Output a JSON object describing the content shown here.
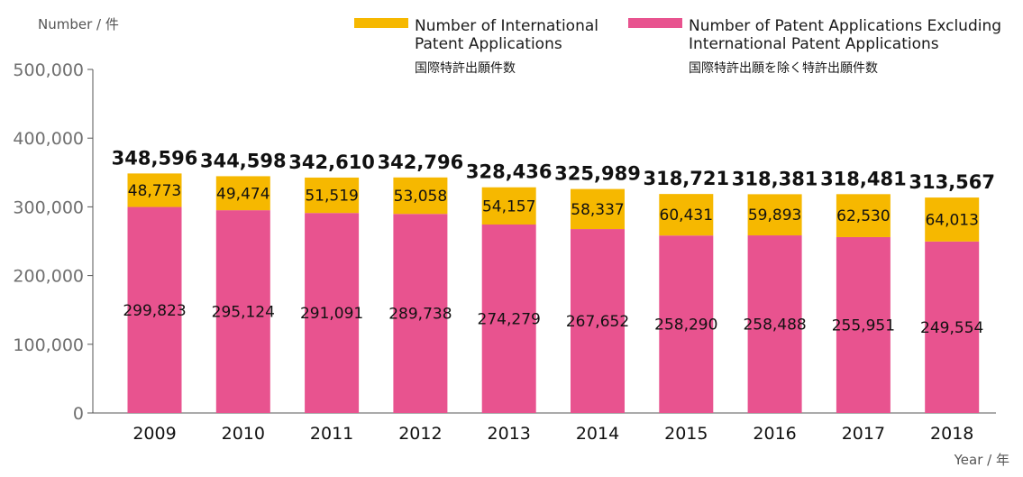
{
  "chart_data": {
    "type": "bar",
    "stacked": true,
    "categories": [
      "2009",
      "2010",
      "2011",
      "2012",
      "2013",
      "2014",
      "2015",
      "2016",
      "2017",
      "2018"
    ],
    "series": [
      {
        "name": "Number of Patent Applications Excluding International Patent Applications",
        "name_ja": "国際特許出願を除く特許出願件数",
        "color": "#e8538f",
        "values": [
          299823,
          295124,
          291091,
          289738,
          274279,
          267652,
          258290,
          258488,
          255951,
          249554
        ],
        "labels": [
          "299,823",
          "295,124",
          "291,091",
          "289,738",
          "274,279",
          "267,652",
          "258,290",
          "258,488",
          "255,951",
          "249,554"
        ]
      },
      {
        "name": "Number of International Patent Applications",
        "name_ja": "国際特許出願件数",
        "color": "#f6b800",
        "values": [
          48773,
          49474,
          51519,
          53058,
          54157,
          58337,
          60431,
          59893,
          62530,
          64013
        ],
        "labels": [
          "48,773",
          "49,474",
          "51,519",
          "53,058",
          "54,157",
          "58,337",
          "60,431",
          "59,893",
          "62,530",
          "64,013"
        ]
      }
    ],
    "totals": [
      348596,
      344598,
      342610,
      342796,
      328436,
      325989,
      318721,
      318381,
      318481,
      313567
    ],
    "total_labels": [
      "348,596",
      "344,598",
      "342,610",
      "342,796",
      "328,436",
      "325,989",
      "318,721",
      "318,381",
      "318,481",
      "313,567"
    ],
    "ylabel": "Number / 件",
    "xlabel": "Year / 年",
    "ylim": [
      0,
      500000
    ],
    "yticks": [
      0,
      100000,
      200000,
      300000,
      400000,
      500000
    ],
    "ytick_labels": [
      "0",
      "100,000",
      "200,000",
      "300,000",
      "400,000",
      "500,000"
    ],
    "legend": {
      "placement": "top-right",
      "items": [
        {
          "color": "#f6b800",
          "lines": [
            "Number of International",
            "Patent Applications"
          ],
          "sub": "国際特許出願件数"
        },
        {
          "color": "#e8538f",
          "lines": [
            "Number of Patent Applications Excluding",
            "International Patent Applications"
          ],
          "sub": "国際特許出願を除く特許出願件数"
        }
      ]
    },
    "grid": false
  }
}
